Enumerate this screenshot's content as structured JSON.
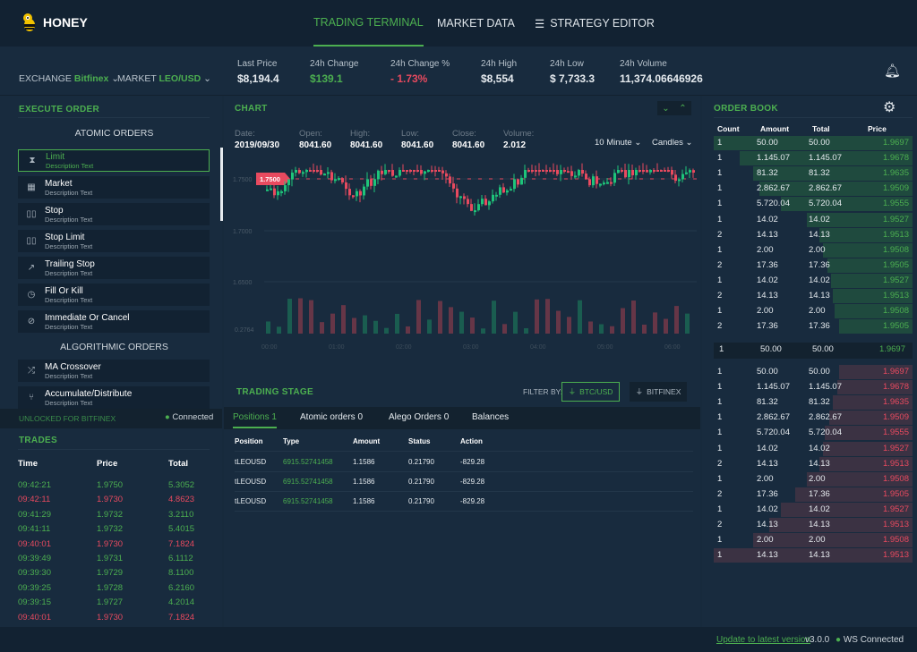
{
  "app": {
    "name": "HONEY"
  },
  "nav": [
    {
      "label": "TRADING TERMINAL",
      "active": true
    },
    {
      "label": "MARKET DATA"
    },
    {
      "label": "STRATEGY EDITOR"
    }
  ],
  "selectors": {
    "exchange_label": "EXCHANGE",
    "exchange_value": "Bitfinex",
    "market_label": "MARKET",
    "market_value": "LEO/USD"
  },
  "stats": [
    {
      "label": "Last Price",
      "value": "$8,194.4"
    },
    {
      "label": "24h Change",
      "value": "$139.1"
    },
    {
      "label": "24h Change %",
      "value": "- 1.73%"
    },
    {
      "label": "24h High",
      "value": "$8,554"
    },
    {
      "label": "24h Low",
      "value": "$ 7,733.3"
    },
    {
      "label": "24h Volume",
      "value": "11,374.06646926"
    }
  ],
  "execute": {
    "title": "EXECUTE ORDER",
    "atomic_title": "ATOMIC ORDERS",
    "algo_title": "ALGORITHMIC ORDERS",
    "atomic": [
      {
        "name": "Limit",
        "desc": "Description Text",
        "icon": "⧗"
      },
      {
        "name": "Market",
        "desc": "Description Text",
        "icon": "▦"
      },
      {
        "name": "Stop",
        "desc": "Description Text",
        "icon": "▯▯"
      },
      {
        "name": "Stop Limit",
        "desc": "Description Text",
        "icon": "▯▯"
      },
      {
        "name": "Trailing Stop",
        "desc": "Description Text",
        "icon": "↗"
      },
      {
        "name": "Fill Or Kill",
        "desc": "Description Text",
        "icon": "◷"
      },
      {
        "name": "Immediate Or Cancel",
        "desc": "Description Text",
        "icon": "⊘"
      }
    ],
    "algo": [
      {
        "name": "MA Crossover",
        "desc": "Description Text",
        "icon": "⤮"
      },
      {
        "name": "Accumulate/Distribute",
        "desc": "Description Text",
        "icon": "⑂"
      }
    ],
    "unlocked": "UNLOCKED FOR BITFINEX",
    "connected": "Connected"
  },
  "trades": {
    "title": "TRADES",
    "headers": [
      "Time",
      "Price",
      "Total"
    ],
    "rows": [
      [
        "09:42:21",
        "1.9750",
        "5.3052",
        "g"
      ],
      [
        "09:42:11",
        "1.9730",
        "4.8623",
        "r"
      ],
      [
        "09:41:29",
        "1.9732",
        "3.2110",
        "g"
      ],
      [
        "09:41:11",
        "1.9732",
        "5.4015",
        "g"
      ],
      [
        "09:40:01",
        "1.9730",
        "7.1824",
        "r"
      ],
      [
        "09:39:49",
        "1.9731",
        "6.1112",
        "g"
      ],
      [
        "09:39:30",
        "1.9729",
        "8.1100",
        "g"
      ],
      [
        "09:39:25",
        "1.9728",
        "6.2160",
        "g"
      ],
      [
        "09:39:15",
        "1.9727",
        "4.2014",
        "g"
      ],
      [
        "09:40:01",
        "1.9730",
        "7.1824",
        "r"
      ]
    ]
  },
  "chart": {
    "title": "CHART",
    "interval": "10 Minute",
    "type": "Candles",
    "price_tag": "1.7500",
    "ohlc": [
      {
        "label": "Date:",
        "value": "2019/09/30"
      },
      {
        "label": "Open:",
        "value": "8041.60"
      },
      {
        "label": "High:",
        "value": "8041.60"
      },
      {
        "label": "Low:",
        "value": "8041.60"
      },
      {
        "label": "Close:",
        "value": "8041.60"
      },
      {
        "label": "Volume:",
        "value": "2.012"
      }
    ],
    "y_ticks": [
      "1.7500",
      "1.7000",
      "1.6500"
    ],
    "vol_tick": "0.2764",
    "x_ticks": [
      "00:00",
      "01:00",
      "02:00",
      "03:00",
      "04:00",
      "05:00",
      "06:00"
    ]
  },
  "stage": {
    "title": "TRADING STAGE",
    "filter_label": "FILTER BY:",
    "filter_pair": "BTC/USD",
    "filter_exchange": "BITFINEX",
    "tabs": [
      "Positions 1",
      "Atomic orders 0",
      "Alego Orders 0",
      "Balances"
    ],
    "headers": [
      "Position",
      "Type",
      "Amount",
      "Status",
      "Action"
    ],
    "rows": [
      [
        "tLEOUSD",
        "6915.52741458",
        "1.1586",
        "0.21790",
        "-829.28"
      ],
      [
        "tLEOUSD",
        "6915.52741458",
        "1.1586",
        "0.21790",
        "-829.28"
      ],
      [
        "tLEOUSD",
        "6915.52741458",
        "1.1586",
        "0.21790",
        "-829.28"
      ]
    ]
  },
  "orderbook": {
    "title": "ORDER BOOK",
    "headers": [
      "Count",
      "Amount",
      "Total",
      "Price"
    ],
    "bids": [
      [
        "1",
        "50.00",
        "50.00",
        "1.9697",
        100
      ],
      [
        "1",
        "1.145.07",
        "1.145.07",
        "1.9678",
        87
      ],
      [
        "1",
        "81.32",
        "81.32",
        "1.9635",
        80
      ],
      [
        "1",
        "2.862.67",
        "2.862.67",
        "1.9509",
        77
      ],
      [
        "1",
        "5.720.04",
        "5.720.04",
        "1.9555",
        66
      ],
      [
        "1",
        "14.02",
        "14.02",
        "1.9527",
        53
      ],
      [
        "2",
        "14.13",
        "14.13",
        "1.9513",
        47
      ],
      [
        "1",
        "2.00",
        "2.00",
        "1.9508",
        45
      ],
      [
        "2",
        "17.36",
        "17.36",
        "1.9505",
        43
      ],
      [
        "1",
        "14.02",
        "14.02",
        "1.9527",
        41
      ],
      [
        "2",
        "14.13",
        "14.13",
        "1.9513",
        40
      ],
      [
        "1",
        "2.00",
        "2.00",
        "1.9508",
        39
      ],
      [
        "2",
        "17.36",
        "17.36",
        "1.9505",
        37
      ]
    ],
    "spread": [
      "1",
      "50.00",
      "50.00",
      "1.9697"
    ],
    "asks": [
      [
        "1",
        "50.00",
        "50.00",
        "1.9697",
        37
      ],
      [
        "1",
        "1.145.07",
        "1.145.07",
        "1.9678",
        38
      ],
      [
        "1",
        "81.32",
        "81.32",
        "1.9635",
        40
      ],
      [
        "1",
        "2.862.67",
        "2.862.67",
        "1.9509",
        42
      ],
      [
        "1",
        "5.720.04",
        "5.720.04",
        "1.9555",
        44
      ],
      [
        "1",
        "14.02",
        "14.02",
        "1.9527",
        45
      ],
      [
        "2",
        "14.13",
        "14.13",
        "1.9513",
        47
      ],
      [
        "1",
        "2.00",
        "2.00",
        "1.9508",
        53
      ],
      [
        "2",
        "17.36",
        "17.36",
        "1.9505",
        59
      ],
      [
        "1",
        "14.02",
        "14.02",
        "1.9527",
        66
      ],
      [
        "2",
        "14.13",
        "14.13",
        "1.9513",
        72
      ],
      [
        "1",
        "2.00",
        "2.00",
        "1.9508",
        80
      ],
      [
        "1",
        "14.13",
        "14.13",
        "1.9513",
        100
      ]
    ]
  },
  "footer": {
    "update_link": "Update to latest version",
    "version": "v3.0.0",
    "ws": "WS Connected"
  },
  "colors": {
    "green": "#4caf50",
    "red": "#e84a5f",
    "bg": "#182b3e",
    "dark": "#122232"
  }
}
